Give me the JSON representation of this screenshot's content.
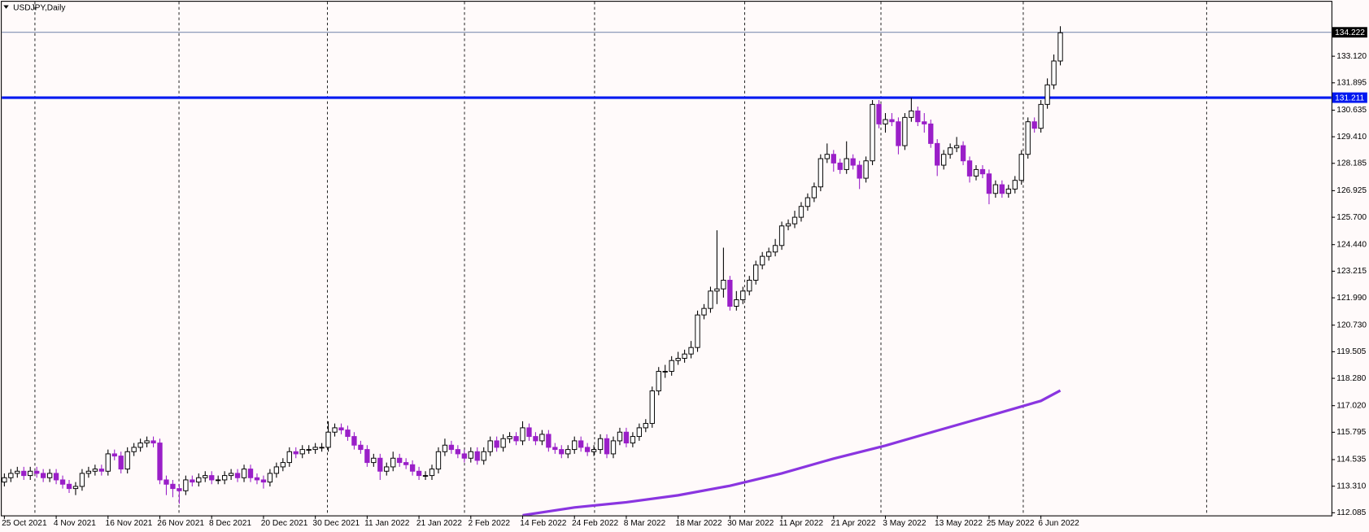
{
  "chart_data": {
    "type": "candlestick",
    "title": "USDJPY,Daily",
    "categories": [
      "25 Oct 2021",
      null,
      null,
      null,
      null,
      null,
      null,
      null,
      "4 Nov 2021",
      null,
      null,
      null,
      null,
      null,
      null,
      null,
      "16 Nov 2021",
      null,
      null,
      null,
      null,
      null,
      null,
      null,
      "26 Nov 2021",
      null,
      null,
      null,
      null,
      null,
      null,
      null,
      "8 Dec 2021",
      null,
      null,
      null,
      null,
      null,
      null,
      null,
      "20 Dec 2021",
      null,
      null,
      null,
      null,
      null,
      null,
      null,
      "30 Dec 2021",
      null,
      null,
      null,
      null,
      null,
      null,
      null,
      "11 Jan 2022",
      null,
      null,
      null,
      null,
      null,
      null,
      null,
      "21 Jan 2022",
      null,
      null,
      null,
      null,
      null,
      null,
      null,
      "2 Feb 2022",
      null,
      null,
      null,
      null,
      null,
      null,
      null,
      "14 Feb 2022",
      null,
      null,
      null,
      null,
      null,
      null,
      null,
      "24 Feb 2022",
      null,
      null,
      null,
      null,
      null,
      null,
      null,
      "8 Mar 2022",
      null,
      null,
      null,
      null,
      null,
      null,
      null,
      "18 Mar 2022",
      null,
      null,
      null,
      null,
      null,
      null,
      null,
      "30 Mar 2022",
      null,
      null,
      null,
      null,
      null,
      null,
      null,
      "11 Apr 2022",
      null,
      null,
      null,
      null,
      null,
      null,
      null,
      "21 Apr 2022",
      null,
      null,
      null,
      null,
      null,
      null,
      null,
      "3 May 2022",
      null,
      null,
      null,
      null,
      null,
      null,
      null,
      "13 May 2022",
      null,
      null,
      null,
      null,
      null,
      null,
      null,
      "25 May 2022",
      null,
      null,
      null,
      null,
      null,
      null,
      null,
      "6 Jun 2022",
      null,
      null,
      null
    ],
    "open": [
      113.5,
      113.7,
      113.9,
      114.0,
      113.8,
      114.0,
      113.9,
      113.7,
      113.9,
      113.6,
      113.4,
      113.2,
      113.3,
      113.9,
      114.0,
      114.1,
      114.0,
      114.8,
      114.7,
      114.1,
      114.9,
      115.1,
      115.3,
      115.4,
      115.3,
      113.6,
      113.4,
      113.2,
      113.1,
      113.6,
      113.5,
      113.7,
      113.8,
      113.6,
      113.6,
      113.8,
      113.9,
      113.7,
      114.1,
      113.7,
      113.6,
      113.5,
      113.9,
      114.2,
      114.4,
      114.9,
      114.8,
      115.0,
      115.0,
      115.1,
      115.1,
      115.8,
      116.0,
      115.9,
      115.6,
      115.2,
      115.0,
      114.4,
      114.6,
      114.0,
      114.2,
      114.6,
      114.4,
      114.3,
      114.0,
      113.8,
      113.8,
      114.1,
      114.9,
      115.2,
      115.0,
      114.8,
      114.6,
      114.9,
      114.5,
      114.9,
      115.4,
      115.1,
      115.5,
      115.6,
      115.4,
      116.0,
      115.6,
      115.4,
      115.7,
      115.1,
      115.0,
      114.8,
      115.0,
      115.4,
      115.1,
      114.9,
      115.0,
      115.5,
      114.8,
      115.4,
      115.8,
      115.3,
      115.6,
      116.0,
      116.2,
      117.7,
      118.6,
      118.6,
      119.1,
      119.2,
      119.4,
      119.7,
      121.2,
      121.5,
      122.3,
      122.4,
      122.8,
      121.6,
      121.9,
      122.3,
      122.8,
      123.5,
      123.9,
      124.1,
      124.4,
      125.3,
      125.4,
      125.7,
      126.2,
      126.6,
      127.1,
      128.4,
      128.6,
      128.2,
      127.9,
      128.4,
      128.1,
      127.5,
      128.3,
      130.9,
      130.0,
      130.2,
      130.1,
      129.0,
      130.3,
      130.6,
      130.1,
      130.0,
      129.1,
      128.1,
      128.6,
      128.9,
      129.0,
      128.3,
      127.6,
      127.9,
      127.7,
      126.8,
      127.2,
      126.8,
      127.0,
      127.4,
      128.6,
      130.1,
      129.8,
      130.9,
      131.8,
      132.9
    ],
    "high": [
      113.9,
      114.1,
      114.2,
      114.2,
      114.2,
      114.2,
      114.1,
      114.1,
      114.1,
      113.8,
      113.6,
      113.5,
      114.1,
      114.2,
      114.3,
      114.3,
      115.0,
      115.0,
      114.9,
      115.1,
      115.3,
      115.5,
      115.6,
      115.6,
      115.5,
      113.8,
      113.6,
      113.4,
      113.8,
      113.8,
      113.9,
      114.0,
      114.0,
      113.8,
      114.0,
      114.1,
      114.1,
      114.3,
      114.3,
      113.9,
      113.8,
      114.1,
      114.4,
      114.6,
      115.1,
      115.1,
      115.2,
      115.2,
      115.3,
      115.3,
      116.3,
      116.2,
      116.2,
      116.1,
      115.8,
      115.4,
      115.2,
      114.8,
      114.8,
      114.4,
      114.9,
      114.8,
      114.6,
      114.5,
      114.2,
      114.0,
      114.3,
      115.1,
      115.5,
      115.4,
      115.2,
      115.0,
      115.1,
      115.1,
      115.1,
      115.6,
      115.6,
      115.7,
      115.8,
      115.8,
      116.3,
      116.2,
      115.8,
      115.9,
      115.9,
      115.3,
      115.2,
      115.2,
      115.6,
      115.6,
      115.3,
      115.2,
      115.7,
      115.7,
      115.6,
      116.0,
      116.0,
      115.8,
      116.2,
      116.4,
      117.9,
      118.8,
      118.9,
      119.3,
      119.5,
      119.6,
      120.0,
      121.4,
      121.7,
      122.5,
      125.1,
      124.3,
      123.0,
      122.3,
      122.5,
      123.0,
      123.7,
      124.1,
      124.3,
      124.7,
      125.5,
      125.6,
      126.0,
      126.4,
      126.8,
      127.3,
      128.6,
      129.1,
      128.8,
      128.4,
      129.2,
      128.6,
      128.3,
      128.5,
      131.1,
      131.1,
      130.5,
      130.5,
      130.3,
      130.5,
      131.2,
      130.8,
      130.5,
      130.2,
      129.3,
      128.8,
      129.1,
      129.4,
      129.2,
      128.5,
      128.1,
      128.1,
      127.9,
      127.4,
      127.4,
      127.2,
      127.6,
      128.8,
      130.3,
      130.3,
      131.1,
      132.1,
      133.2,
      134.5
    ],
    "low": [
      113.3,
      113.5,
      113.7,
      113.6,
      113.6,
      113.7,
      113.5,
      113.5,
      113.4,
      113.2,
      113.0,
      112.9,
      113.1,
      113.7,
      113.8,
      113.8,
      113.8,
      114.5,
      113.9,
      113.9,
      114.7,
      114.9,
      115.1,
      115.1,
      113.4,
      112.9,
      112.8,
      112.5,
      112.9,
      113.3,
      113.3,
      113.5,
      113.4,
      113.4,
      113.4,
      113.6,
      113.5,
      113.5,
      113.5,
      113.4,
      113.2,
      113.3,
      113.7,
      114.0,
      114.2,
      114.6,
      114.6,
      114.8,
      114.8,
      114.9,
      114.9,
      115.6,
      115.7,
      115.4,
      115.0,
      114.8,
      114.2,
      114.2,
      113.6,
      113.8,
      114.0,
      114.2,
      114.1,
      113.8,
      113.6,
      113.6,
      113.6,
      113.9,
      114.7,
      114.8,
      114.6,
      114.4,
      114.4,
      114.3,
      114.3,
      114.7,
      114.9,
      114.9,
      115.3,
      115.2,
      115.2,
      115.4,
      115.2,
      115.2,
      114.9,
      114.8,
      114.6,
      114.6,
      114.8,
      114.9,
      114.7,
      114.7,
      114.8,
      114.6,
      114.6,
      115.2,
      115.1,
      115.1,
      115.4,
      115.8,
      116.0,
      117.5,
      118.3,
      118.4,
      118.9,
      119.0,
      119.2,
      119.5,
      121.0,
      121.3,
      121.7,
      122.0,
      121.4,
      121.4,
      121.7,
      122.1,
      122.6,
      123.3,
      123.7,
      123.9,
      124.2,
      125.1,
      125.2,
      125.5,
      126.0,
      126.4,
      126.9,
      128.2,
      127.8,
      127.7,
      127.7,
      127.9,
      127.0,
      127.3,
      128.1,
      129.8,
      129.6,
      129.9,
      128.6,
      128.8,
      130.1,
      129.9,
      129.6,
      128.9,
      127.6,
      127.9,
      128.4,
      128.7,
      128.1,
      127.3,
      127.4,
      127.5,
      126.3,
      126.6,
      126.6,
      126.6,
      126.8,
      127.2,
      128.4,
      129.6,
      129.6,
      130.7,
      131.6,
      132.7
    ],
    "close": [
      113.7,
      113.9,
      114.0,
      113.8,
      114.0,
      113.9,
      113.7,
      113.9,
      113.6,
      113.4,
      113.2,
      113.3,
      113.9,
      114.0,
      114.1,
      114.0,
      114.8,
      114.7,
      114.1,
      114.9,
      115.1,
      115.3,
      115.4,
      115.3,
      113.6,
      113.4,
      113.2,
      113.1,
      113.6,
      113.5,
      113.7,
      113.8,
      113.6,
      113.6,
      113.8,
      113.9,
      113.7,
      114.1,
      113.7,
      113.6,
      113.5,
      113.9,
      114.2,
      114.4,
      114.9,
      114.8,
      115.0,
      115.0,
      115.1,
      115.1,
      115.8,
      116.0,
      115.9,
      115.6,
      115.2,
      115.0,
      114.4,
      114.6,
      114.0,
      114.2,
      114.6,
      114.4,
      114.3,
      114.0,
      113.8,
      113.8,
      114.1,
      114.9,
      115.2,
      115.0,
      114.8,
      114.6,
      114.9,
      114.5,
      114.9,
      115.4,
      115.1,
      115.5,
      115.6,
      115.4,
      116.0,
      115.6,
      115.4,
      115.7,
      115.1,
      115.0,
      114.8,
      115.0,
      115.4,
      115.1,
      114.9,
      115.0,
      115.5,
      114.8,
      115.4,
      115.8,
      115.3,
      115.6,
      116.0,
      116.2,
      117.7,
      118.6,
      118.6,
      119.1,
      119.2,
      119.4,
      119.7,
      121.2,
      121.5,
      122.3,
      122.4,
      122.8,
      121.6,
      121.9,
      122.3,
      122.8,
      123.5,
      123.9,
      124.1,
      124.4,
      125.3,
      125.4,
      125.7,
      126.2,
      126.6,
      127.1,
      128.4,
      128.6,
      128.2,
      127.9,
      128.4,
      128.1,
      127.5,
      128.3,
      130.9,
      130.0,
      130.2,
      130.1,
      129.0,
      130.3,
      130.6,
      130.1,
      130.0,
      129.1,
      128.1,
      128.6,
      128.9,
      129.0,
      128.3,
      127.6,
      127.9,
      127.7,
      126.8,
      127.2,
      126.8,
      127.0,
      127.4,
      128.6,
      130.1,
      129.8,
      130.9,
      131.8,
      132.9,
      134.2
    ],
    "up_color": "#ffffff",
    "down_color": "#9a1fc8",
    "outline_color": "#000000",
    "ma": {
      "color": "#8a35e0",
      "x": [
        80,
        88,
        96,
        104,
        112,
        120,
        128,
        136,
        144,
        152,
        160,
        163
      ],
      "values": [
        111.97,
        112.33,
        112.57,
        112.89,
        113.33,
        113.9,
        114.58,
        115.18,
        115.87,
        116.55,
        117.24,
        117.72
      ]
    },
    "hlines": [
      {
        "value": 131.211,
        "color": "#0018f0",
        "width": 3,
        "text_color": "#ffffff"
      },
      {
        "value": 134.222,
        "color": "#7f8fb0",
        "width": 1,
        "text_color": "#ffffff",
        "label_bg": "#000000"
      }
    ],
    "ylim": [
      111.964,
      135.63
    ],
    "yticks": [
      {
        "value": 133.12,
        "label": "133.120"
      },
      131.895,
      130.635,
      {
        "value": 129.41,
        "label": "129.410"
      },
      128.185,
      126.925,
      {
        "value": 125.7,
        "label": "125.700"
      },
      {
        "value": 124.44,
        "label": "124.440"
      },
      123.215,
      {
        "value": 121.99,
        "label": "121.990"
      },
      {
        "value": 120.73,
        "label": "120.730"
      },
      119.505,
      {
        "value": 118.28,
        "label": "118.280"
      },
      {
        "value": 117.02,
        "label": "117.020"
      },
      115.795,
      114.535,
      {
        "value": 113.31,
        "label": "113.310"
      },
      112.085
    ]
  }
}
